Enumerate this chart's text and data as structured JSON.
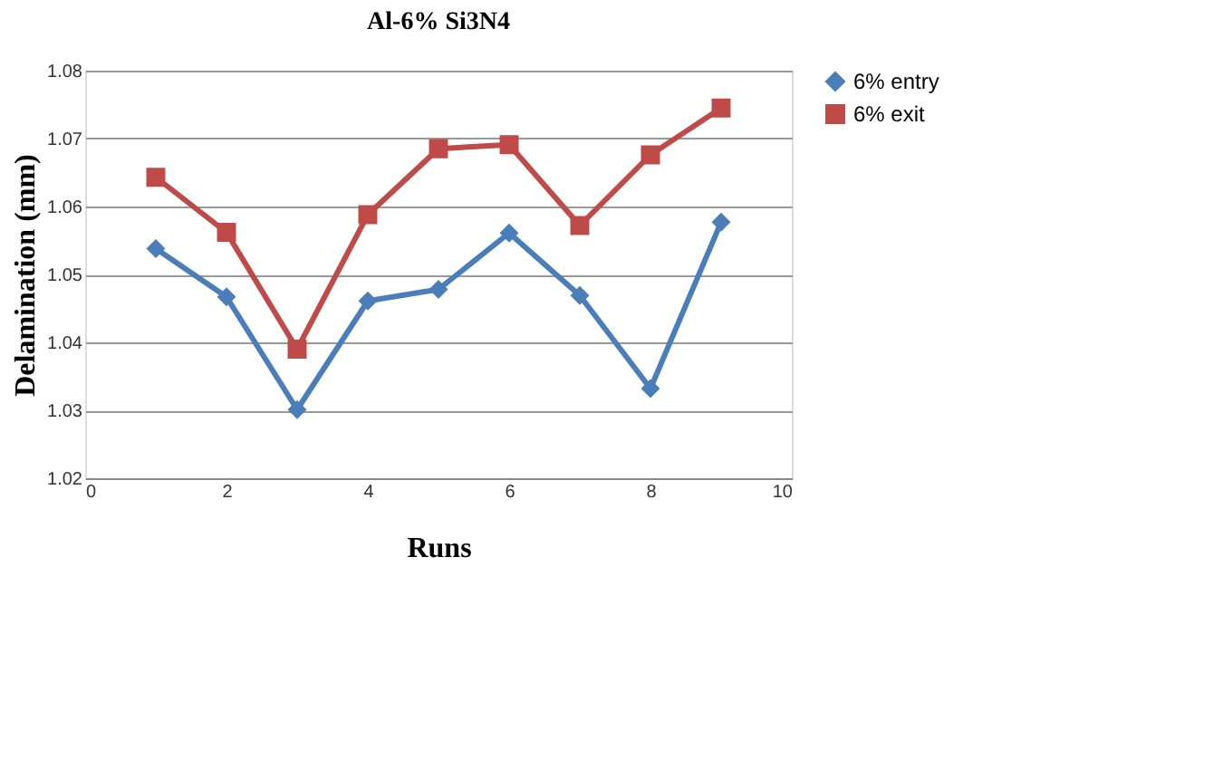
{
  "chart_data": {
    "type": "line",
    "title": "Al-6% Si3N4",
    "xlabel": "Runs",
    "ylabel": "Delamination (mm)",
    "x": [
      1,
      2,
      3,
      4,
      5,
      6,
      7,
      8,
      9
    ],
    "series": [
      {
        "name": "6% entry",
        "color": "#4a7ebb",
        "marker": "diamond",
        "values": [
          1.0538,
          1.0467,
          1.0301,
          1.0461,
          1.0478,
          1.0561,
          1.0469,
          1.0332,
          1.0577
        ]
      },
      {
        "name": "6% exit",
        "color": "#be4b48",
        "marker": "square",
        "values": [
          1.0643,
          1.0562,
          1.039,
          1.0588,
          1.0685,
          1.0691,
          1.0572,
          1.0676,
          1.0745
        ]
      }
    ],
    "xlim": [
      0,
      10
    ],
    "xticks": [
      0,
      2,
      4,
      6,
      8,
      10
    ],
    "ylim": [
      1.02,
      1.08
    ],
    "yticks": [
      1.02,
      1.03,
      1.04,
      1.05,
      1.06,
      1.07,
      1.08
    ],
    "grid": "y",
    "legend": "right",
    "line_style": "solid"
  }
}
